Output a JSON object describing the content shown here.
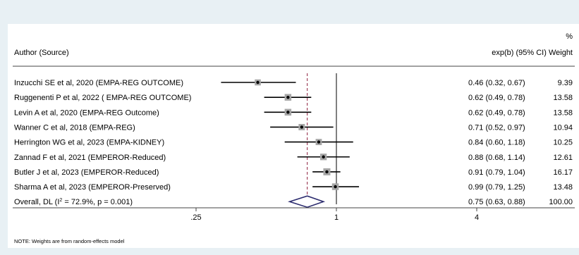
{
  "header": {
    "percent_label": "%",
    "author_label": "Author (Source)",
    "estimate_label": "exp(b) (95% CI) Weight"
  },
  "footer_note": "NOTE: Weights are from random-effects model",
  "colors": {
    "panel": "#ffffff",
    "page": "#e8f0f4",
    "line": "#000000",
    "marker_box": "#a6a6a6",
    "diamond": "#2b2b6e",
    "overall_line": "#8b1a3a"
  },
  "chart_data": {
    "type": "forest",
    "scale": "log",
    "null_value": 1,
    "xlim": [
      0.16,
      5.0
    ],
    "ticks": [
      {
        "value": 0.25,
        "label": ".25"
      },
      {
        "value": 1,
        "label": "1"
      },
      {
        "value": 4,
        "label": "4"
      }
    ],
    "studies": [
      {
        "label": "Inzucchi SE et al, 2020 (EMPA-REG OUTCOME)",
        "estimate": 0.46,
        "lower": 0.32,
        "upper": 0.67,
        "weight": 9.39,
        "ci_text": "0.46 (0.32, 0.67)",
        "weight_text": "9.39"
      },
      {
        "label": "Ruggenenti P et al, 2022 ( EMPA-REG OUTCOME)",
        "estimate": 0.62,
        "lower": 0.49,
        "upper": 0.78,
        "weight": 13.58,
        "ci_text": "0.62 (0.49, 0.78)",
        "weight_text": "13.58"
      },
      {
        "label": "Levin A et al, 2020 (EMPA-REG Outcome)",
        "estimate": 0.62,
        "lower": 0.49,
        "upper": 0.78,
        "weight": 13.58,
        "ci_text": "0.62 (0.49, 0.78)",
        "weight_text": "13.58"
      },
      {
        "label": "Wanner C et al, 2018 (EMPA-REG)",
        "estimate": 0.71,
        "lower": 0.52,
        "upper": 0.97,
        "weight": 10.94,
        "ci_text": "0.71 (0.52, 0.97)",
        "weight_text": "10.94"
      },
      {
        "label": "Herrington WG et al, 2023 (EMPA-KIDNEY)",
        "estimate": 0.84,
        "lower": 0.6,
        "upper": 1.18,
        "weight": 10.25,
        "ci_text": "0.84 (0.60, 1.18)",
        "weight_text": "10.25"
      },
      {
        "label": "Zannad F et al, 2021 (EMPEROR-Reduced)",
        "estimate": 0.88,
        "lower": 0.68,
        "upper": 1.14,
        "weight": 12.61,
        "ci_text": "0.88 (0.68, 1.14)",
        "weight_text": "12.61"
      },
      {
        "label": "Butler J et al, 2023 (EMPEROR-Reduced)",
        "estimate": 0.91,
        "lower": 0.79,
        "upper": 1.04,
        "weight": 16.17,
        "ci_text": "0.91 (0.79, 1.04)",
        "weight_text": "16.17"
      },
      {
        "label": "Sharma A et al, 2023 (EMPEROR-Preserved)",
        "estimate": 0.99,
        "lower": 0.79,
        "upper": 1.25,
        "weight": 13.48,
        "ci_text": "0.99 (0.79, 1.25)",
        "weight_text": "13.48"
      }
    ],
    "overall": {
      "label_prefix": "Overall, DL (I",
      "label_sup": "2",
      "label_suffix": " = 72.9%, p = 0.001)",
      "estimate": 0.75,
      "lower": 0.63,
      "upper": 0.88,
      "ci_text": "0.75 (0.63, 0.88)",
      "weight_text": "100.00"
    }
  }
}
